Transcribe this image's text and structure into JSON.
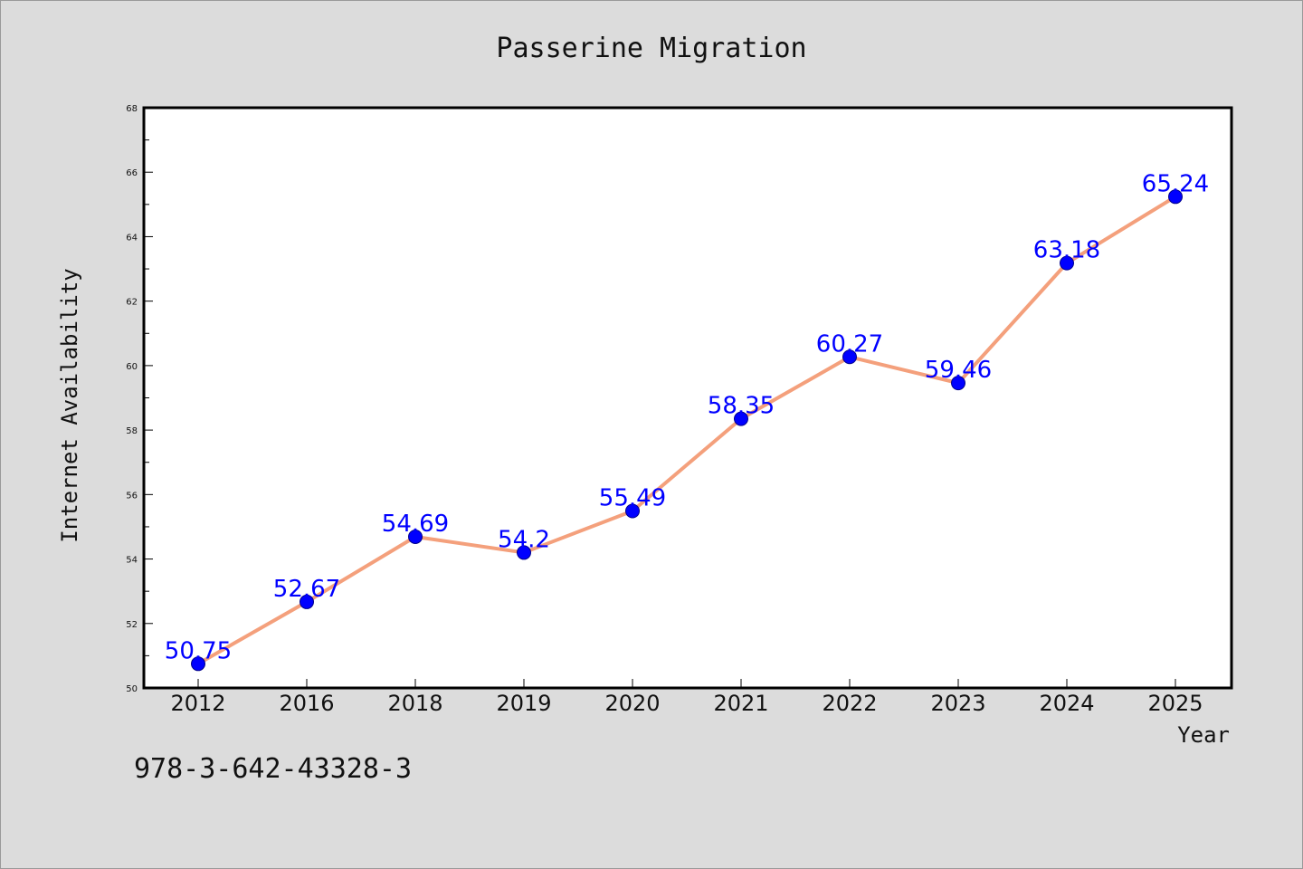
{
  "chart_data": {
    "type": "line",
    "title": "Passerine Migration",
    "xlabel": "Year",
    "ylabel": "Internet Availability",
    "categories": [
      "2012",
      "2016",
      "2018",
      "2019",
      "2020",
      "2021",
      "2022",
      "2023",
      "2024",
      "2025"
    ],
    "series": [
      {
        "values": [
          50.75,
          52.67,
          54.69,
          54.2,
          55.49,
          58.35,
          60.27,
          59.46,
          63.18,
          65.24
        ],
        "data_labels": [
          "50.75",
          "52.67",
          "54.69",
          "54.2",
          "55.49",
          "58.35",
          "60.27",
          "59.46",
          "63.18",
          "65.24"
        ]
      }
    ],
    "ylim": [
      50,
      68
    ],
    "yticks": [
      50,
      52,
      54,
      56,
      58,
      60,
      62,
      64,
      66,
      68
    ],
    "ytick_labels": [
      "50",
      "52",
      "54",
      "56",
      "58",
      "60",
      "62",
      "64",
      "66",
      "68"
    ],
    "grid": false,
    "legend": "none",
    "colors": {
      "line": "#f4a07c",
      "marker_fill": "#0000ff",
      "marker_edge": "#00008b",
      "data_label": "#0000ff",
      "plot_background": "#ffffff",
      "figure_background": "#dcdcdc"
    }
  },
  "footer_text": "978-3-642-43328-3"
}
